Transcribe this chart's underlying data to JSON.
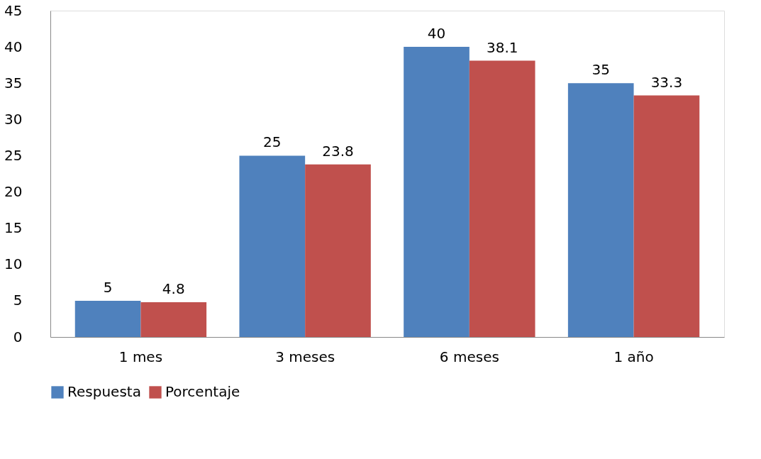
{
  "chart_data": {
    "type": "bar",
    "categories": [
      "1 mes",
      "3 meses",
      "6 meses",
      "1 año"
    ],
    "series": [
      {
        "name": "Respuesta",
        "color": "#4f81bd",
        "values": [
          5,
          25,
          40,
          35
        ]
      },
      {
        "name": "Porcentaje",
        "color": "#c0504d",
        "values": [
          4.8,
          23.8,
          38.1,
          33.3
        ]
      }
    ],
    "ylim": [
      0,
      45
    ],
    "yticks": [
      0,
      5,
      10,
      15,
      20,
      25,
      30,
      35,
      40,
      45
    ],
    "grid": false,
    "legend": "bottom",
    "data_labels": true
  }
}
